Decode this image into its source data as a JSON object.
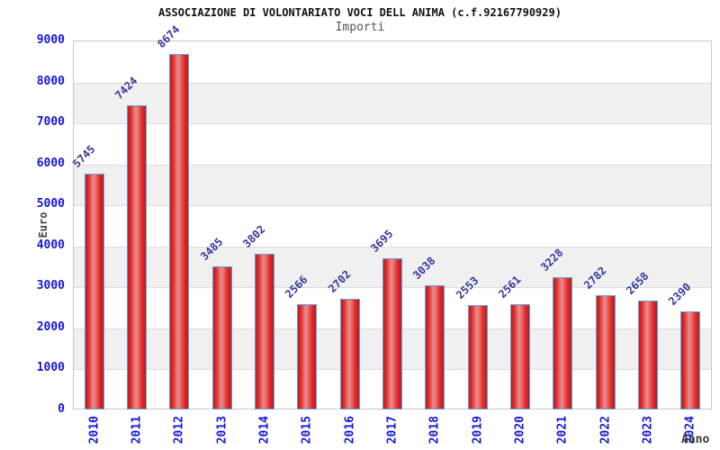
{
  "header": {
    "title": "ASSOCIAZIONE DI VOLONTARIATO VOCI DELL ANIMA (c.f.92167790929)",
    "subtitle": "Importi"
  },
  "chart_data": {
    "type": "bar",
    "title": "ASSOCIAZIONE DI VOLONTARIATO VOCI DELL ANIMA (c.f.92167790929)",
    "subtitle": "Importi",
    "xlabel": "Anno",
    "ylabel": "Euro",
    "categories": [
      "2010",
      "2011",
      "2012",
      "2013",
      "2014",
      "2015",
      "2016",
      "2017",
      "2018",
      "2019",
      "2020",
      "2021",
      "2022",
      "2023",
      "2024"
    ],
    "values": [
      5745,
      7424,
      8674,
      3485,
      3802,
      2566,
      2702,
      3695,
      3038,
      2553,
      2561,
      3228,
      2782,
      2658,
      2390
    ],
    "ylim": [
      0,
      9000
    ],
    "ytick_step": 1000,
    "grid": true,
    "value_labels_rotated_45deg": true,
    "x_labels_rotated_90deg": true,
    "legend": "none",
    "colors": {
      "tick_label": "#1616d6",
      "value_label": "#34349c",
      "bar_border": "#5ba3e0",
      "bar_gradient": [
        "#b62020",
        "#e32626",
        "#e89090",
        "#e32626",
        "#b62020"
      ],
      "band_main": "#ffffff",
      "band_alt": "#f0f0f0",
      "gridline": "#dcdcdc",
      "plot_border": "#c8c8c8"
    }
  }
}
